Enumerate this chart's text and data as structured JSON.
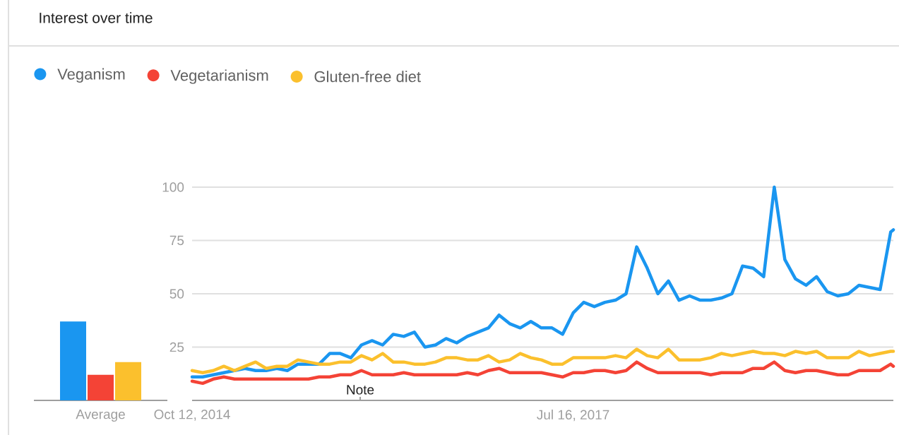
{
  "chart_data": [
    {
      "type": "bar",
      "categories": [
        "Average"
      ],
      "series": [
        {
          "color": "#1a96f0",
          "values": [
            37
          ]
        },
        {
          "color": "#f44336",
          "values": [
            12
          ]
        },
        {
          "color": "#fbc02d",
          "values": [
            18
          ]
        }
      ],
      "ylim": [
        0,
        100
      ],
      "tick_labels": "x",
      "title": "Interest over time"
    },
    {
      "type": "line",
      "x": [
        "2014-10-12",
        "2014-11-09",
        "2014-12-07",
        "2015-01-04",
        "2015-02-01",
        "2015-03-01",
        "2015-03-29",
        "2015-04-26",
        "2015-05-24",
        "2015-06-21",
        "2015-07-19",
        "2015-08-16",
        "2015-09-13",
        "2015-10-11",
        "2015-11-08",
        "2015-12-06",
        "2016-01-03",
        "2016-01-31",
        "2016-02-28",
        "2016-03-27",
        "2016-04-24",
        "2016-05-22",
        "2016-06-19",
        "2016-07-17",
        "2016-08-14",
        "2016-09-11",
        "2016-10-09",
        "2016-11-06",
        "2016-12-04",
        "2017-01-01",
        "2017-01-29",
        "2017-02-26",
        "2017-03-26",
        "2017-04-23",
        "2017-05-21",
        "2017-06-18",
        "2017-07-16",
        "2017-08-13",
        "2017-09-10",
        "2017-10-08",
        "2017-11-05",
        "2017-12-03",
        "2017-12-31",
        "2018-01-28",
        "2018-02-25",
        "2018-03-25",
        "2018-04-22",
        "2018-05-20",
        "2018-06-17",
        "2018-07-15",
        "2018-08-12",
        "2018-09-09",
        "2018-10-07",
        "2018-11-04",
        "2018-12-02",
        "2018-12-30",
        "2019-01-27",
        "2019-02-24",
        "2019-03-24",
        "2019-04-21",
        "2019-05-19",
        "2019-06-16",
        "2019-07-14",
        "2019-08-11",
        "2019-09-08",
        "2019-10-06",
        "2019-11-03",
        "2019-11-10"
      ],
      "series": [
        {
          "name": "Veganism",
          "color": "#1a96f0",
          "values": [
            11,
            11,
            12,
            13,
            14,
            15,
            14,
            14,
            15,
            14,
            17,
            17,
            17,
            22,
            22,
            20,
            26,
            28,
            26,
            31,
            30,
            32,
            25,
            26,
            29,
            27,
            30,
            32,
            34,
            40,
            36,
            34,
            37,
            34,
            34,
            31,
            41,
            46,
            44,
            46,
            47,
            50,
            72,
            62,
            50,
            56,
            47,
            49,
            47,
            47,
            48,
            50,
            63,
            62,
            58,
            100,
            66,
            57,
            54,
            58,
            51,
            49,
            50,
            54,
            53,
            52,
            79,
            80
          ]
        },
        {
          "name": "Vegetarianism",
          "color": "#f44336",
          "values": [
            9,
            8,
            10,
            11,
            10,
            10,
            10,
            10,
            10,
            10,
            10,
            10,
            11,
            11,
            12,
            12,
            14,
            12,
            12,
            12,
            13,
            12,
            12,
            12,
            12,
            12,
            13,
            12,
            14,
            15,
            13,
            13,
            13,
            13,
            12,
            11,
            13,
            13,
            14,
            14,
            13,
            14,
            18,
            15,
            13,
            13,
            13,
            13,
            13,
            12,
            13,
            13,
            13,
            15,
            15,
            18,
            14,
            13,
            14,
            14,
            13,
            12,
            12,
            14,
            14,
            14,
            17,
            16
          ]
        },
        {
          "name": "Gluten-free diet",
          "color": "#fbc02d",
          "values": [
            14,
            13,
            14,
            16,
            14,
            16,
            18,
            15,
            16,
            16,
            19,
            18,
            17,
            17,
            18,
            18,
            21,
            19,
            22,
            18,
            18,
            17,
            17,
            18,
            20,
            20,
            19,
            19,
            21,
            18,
            19,
            22,
            20,
            19,
            17,
            17,
            20,
            20,
            20,
            20,
            21,
            20,
            24,
            21,
            20,
            24,
            19,
            19,
            19,
            20,
            22,
            21,
            22,
            23,
            22,
            22,
            21,
            23,
            22,
            23,
            20,
            20,
            20,
            23,
            21,
            22,
            23,
            23
          ]
        }
      ],
      "xlim": [
        "2014-10-12",
        "2019-11-10"
      ],
      "xticks": [
        {
          "value": "2014-10-12",
          "label": "Oct 12, 2014"
        },
        {
          "value": "2017-07-16",
          "label": "Jul 16, 2017"
        }
      ],
      "ylim": [
        0,
        100
      ],
      "yticks": [
        25,
        50,
        75,
        100
      ],
      "grid": "y",
      "legend": "top left",
      "annotations": [
        "Note"
      ]
    }
  ]
}
